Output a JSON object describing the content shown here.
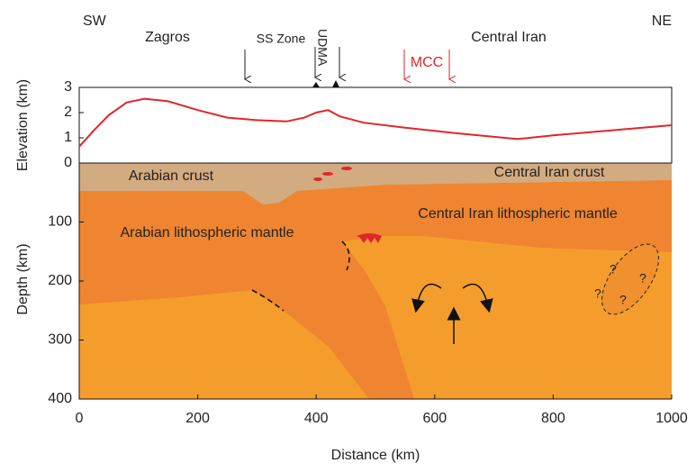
{
  "chart_data": [
    {
      "type": "line",
      "ylabel": "Elevation (km)",
      "annotations": {
        "sw": "SW",
        "ne": "NE",
        "zagros": "Zagros",
        "ss_zone": "SS Zone",
        "udma": "UDMA",
        "central_iran": "Central Iran",
        "mcc": "MCC"
      },
      "x": [
        0,
        25,
        50,
        80,
        110,
        150,
        200,
        250,
        300,
        350,
        380,
        400,
        420,
        440,
        480,
        550,
        650,
        740,
        800,
        900,
        1000
      ],
      "values": [
        0.65,
        1.3,
        1.9,
        2.4,
        2.55,
        2.45,
        2.1,
        1.8,
        1.7,
        1.65,
        1.8,
        2.0,
        2.1,
        1.85,
        1.6,
        1.4,
        1.15,
        0.95,
        1.1,
        1.3,
        1.5
      ],
      "color": "#e0262a",
      "xlim": [
        0,
        1000
      ],
      "ylim": [
        0,
        3
      ],
      "yticks": [
        0,
        1,
        2,
        3
      ]
    },
    {
      "type": "cross-section",
      "xlabel": "Distance (km)",
      "ylabel": "Depth (km)",
      "regions": {
        "arabian_crust": "Arabian crust",
        "central_iran_crust": "Central Iran crust",
        "central_iran_mantle": "Central Iran lithospheric mantle",
        "arabian_mantle": "Arabian lithospheric mantle",
        "unknown": "?"
      },
      "xlim": [
        0,
        1000
      ],
      "xticks": [
        0,
        200,
        400,
        600,
        800,
        1000
      ],
      "ylim": [
        0,
        400
      ],
      "yticks": [
        100,
        200,
        300,
        400
      ],
      "inverted": true
    }
  ]
}
